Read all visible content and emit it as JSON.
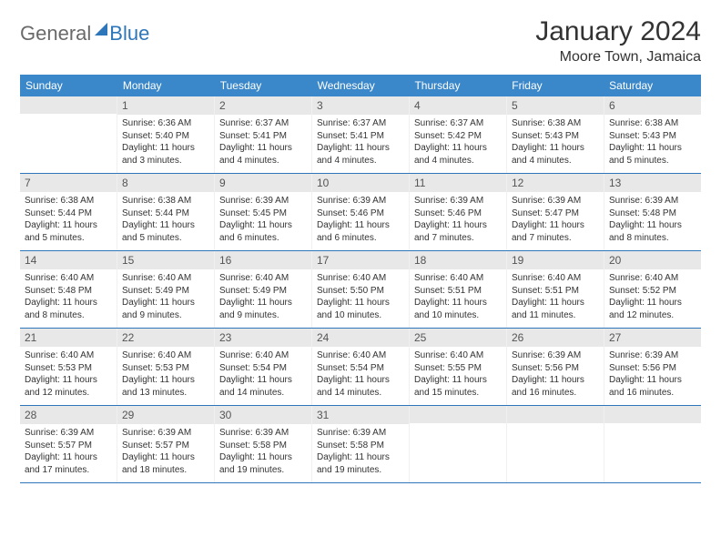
{
  "logo": {
    "general": "General",
    "blue": "Blue"
  },
  "title": "January 2024",
  "location": "Moore Town, Jamaica",
  "colors": {
    "header_bg": "#3a87c9",
    "header_text": "#ffffff",
    "daynum_bg": "#e8e8e8",
    "border": "#2d76ba",
    "text": "#333333",
    "logo_gray": "#6a6a6a",
    "logo_blue": "#2d76ba"
  },
  "day_headers": [
    "Sunday",
    "Monday",
    "Tuesday",
    "Wednesday",
    "Thursday",
    "Friday",
    "Saturday"
  ],
  "weeks": [
    [
      {
        "num": "",
        "lines": []
      },
      {
        "num": "1",
        "lines": [
          "Sunrise: 6:36 AM",
          "Sunset: 5:40 PM",
          "Daylight: 11 hours",
          "and 3 minutes."
        ]
      },
      {
        "num": "2",
        "lines": [
          "Sunrise: 6:37 AM",
          "Sunset: 5:41 PM",
          "Daylight: 11 hours",
          "and 4 minutes."
        ]
      },
      {
        "num": "3",
        "lines": [
          "Sunrise: 6:37 AM",
          "Sunset: 5:41 PM",
          "Daylight: 11 hours",
          "and 4 minutes."
        ]
      },
      {
        "num": "4",
        "lines": [
          "Sunrise: 6:37 AM",
          "Sunset: 5:42 PM",
          "Daylight: 11 hours",
          "and 4 minutes."
        ]
      },
      {
        "num": "5",
        "lines": [
          "Sunrise: 6:38 AM",
          "Sunset: 5:43 PM",
          "Daylight: 11 hours",
          "and 4 minutes."
        ]
      },
      {
        "num": "6",
        "lines": [
          "Sunrise: 6:38 AM",
          "Sunset: 5:43 PM",
          "Daylight: 11 hours",
          "and 5 minutes."
        ]
      }
    ],
    [
      {
        "num": "7",
        "lines": [
          "Sunrise: 6:38 AM",
          "Sunset: 5:44 PM",
          "Daylight: 11 hours",
          "and 5 minutes."
        ]
      },
      {
        "num": "8",
        "lines": [
          "Sunrise: 6:38 AM",
          "Sunset: 5:44 PM",
          "Daylight: 11 hours",
          "and 5 minutes."
        ]
      },
      {
        "num": "9",
        "lines": [
          "Sunrise: 6:39 AM",
          "Sunset: 5:45 PM",
          "Daylight: 11 hours",
          "and 6 minutes."
        ]
      },
      {
        "num": "10",
        "lines": [
          "Sunrise: 6:39 AM",
          "Sunset: 5:46 PM",
          "Daylight: 11 hours",
          "and 6 minutes."
        ]
      },
      {
        "num": "11",
        "lines": [
          "Sunrise: 6:39 AM",
          "Sunset: 5:46 PM",
          "Daylight: 11 hours",
          "and 7 minutes."
        ]
      },
      {
        "num": "12",
        "lines": [
          "Sunrise: 6:39 AM",
          "Sunset: 5:47 PM",
          "Daylight: 11 hours",
          "and 7 minutes."
        ]
      },
      {
        "num": "13",
        "lines": [
          "Sunrise: 6:39 AM",
          "Sunset: 5:48 PM",
          "Daylight: 11 hours",
          "and 8 minutes."
        ]
      }
    ],
    [
      {
        "num": "14",
        "lines": [
          "Sunrise: 6:40 AM",
          "Sunset: 5:48 PM",
          "Daylight: 11 hours",
          "and 8 minutes."
        ]
      },
      {
        "num": "15",
        "lines": [
          "Sunrise: 6:40 AM",
          "Sunset: 5:49 PM",
          "Daylight: 11 hours",
          "and 9 minutes."
        ]
      },
      {
        "num": "16",
        "lines": [
          "Sunrise: 6:40 AM",
          "Sunset: 5:49 PM",
          "Daylight: 11 hours",
          "and 9 minutes."
        ]
      },
      {
        "num": "17",
        "lines": [
          "Sunrise: 6:40 AM",
          "Sunset: 5:50 PM",
          "Daylight: 11 hours",
          "and 10 minutes."
        ]
      },
      {
        "num": "18",
        "lines": [
          "Sunrise: 6:40 AM",
          "Sunset: 5:51 PM",
          "Daylight: 11 hours",
          "and 10 minutes."
        ]
      },
      {
        "num": "19",
        "lines": [
          "Sunrise: 6:40 AM",
          "Sunset: 5:51 PM",
          "Daylight: 11 hours",
          "and 11 minutes."
        ]
      },
      {
        "num": "20",
        "lines": [
          "Sunrise: 6:40 AM",
          "Sunset: 5:52 PM",
          "Daylight: 11 hours",
          "and 12 minutes."
        ]
      }
    ],
    [
      {
        "num": "21",
        "lines": [
          "Sunrise: 6:40 AM",
          "Sunset: 5:53 PM",
          "Daylight: 11 hours",
          "and 12 minutes."
        ]
      },
      {
        "num": "22",
        "lines": [
          "Sunrise: 6:40 AM",
          "Sunset: 5:53 PM",
          "Daylight: 11 hours",
          "and 13 minutes."
        ]
      },
      {
        "num": "23",
        "lines": [
          "Sunrise: 6:40 AM",
          "Sunset: 5:54 PM",
          "Daylight: 11 hours",
          "and 14 minutes."
        ]
      },
      {
        "num": "24",
        "lines": [
          "Sunrise: 6:40 AM",
          "Sunset: 5:54 PM",
          "Daylight: 11 hours",
          "and 14 minutes."
        ]
      },
      {
        "num": "25",
        "lines": [
          "Sunrise: 6:40 AM",
          "Sunset: 5:55 PM",
          "Daylight: 11 hours",
          "and 15 minutes."
        ]
      },
      {
        "num": "26",
        "lines": [
          "Sunrise: 6:39 AM",
          "Sunset: 5:56 PM",
          "Daylight: 11 hours",
          "and 16 minutes."
        ]
      },
      {
        "num": "27",
        "lines": [
          "Sunrise: 6:39 AM",
          "Sunset: 5:56 PM",
          "Daylight: 11 hours",
          "and 16 minutes."
        ]
      }
    ],
    [
      {
        "num": "28",
        "lines": [
          "Sunrise: 6:39 AM",
          "Sunset: 5:57 PM",
          "Daylight: 11 hours",
          "and 17 minutes."
        ]
      },
      {
        "num": "29",
        "lines": [
          "Sunrise: 6:39 AM",
          "Sunset: 5:57 PM",
          "Daylight: 11 hours",
          "and 18 minutes."
        ]
      },
      {
        "num": "30",
        "lines": [
          "Sunrise: 6:39 AM",
          "Sunset: 5:58 PM",
          "Daylight: 11 hours",
          "and 19 minutes."
        ]
      },
      {
        "num": "31",
        "lines": [
          "Sunrise: 6:39 AM",
          "Sunset: 5:58 PM",
          "Daylight: 11 hours",
          "and 19 minutes."
        ]
      },
      {
        "num": "",
        "lines": []
      },
      {
        "num": "",
        "lines": []
      },
      {
        "num": "",
        "lines": []
      }
    ]
  ]
}
